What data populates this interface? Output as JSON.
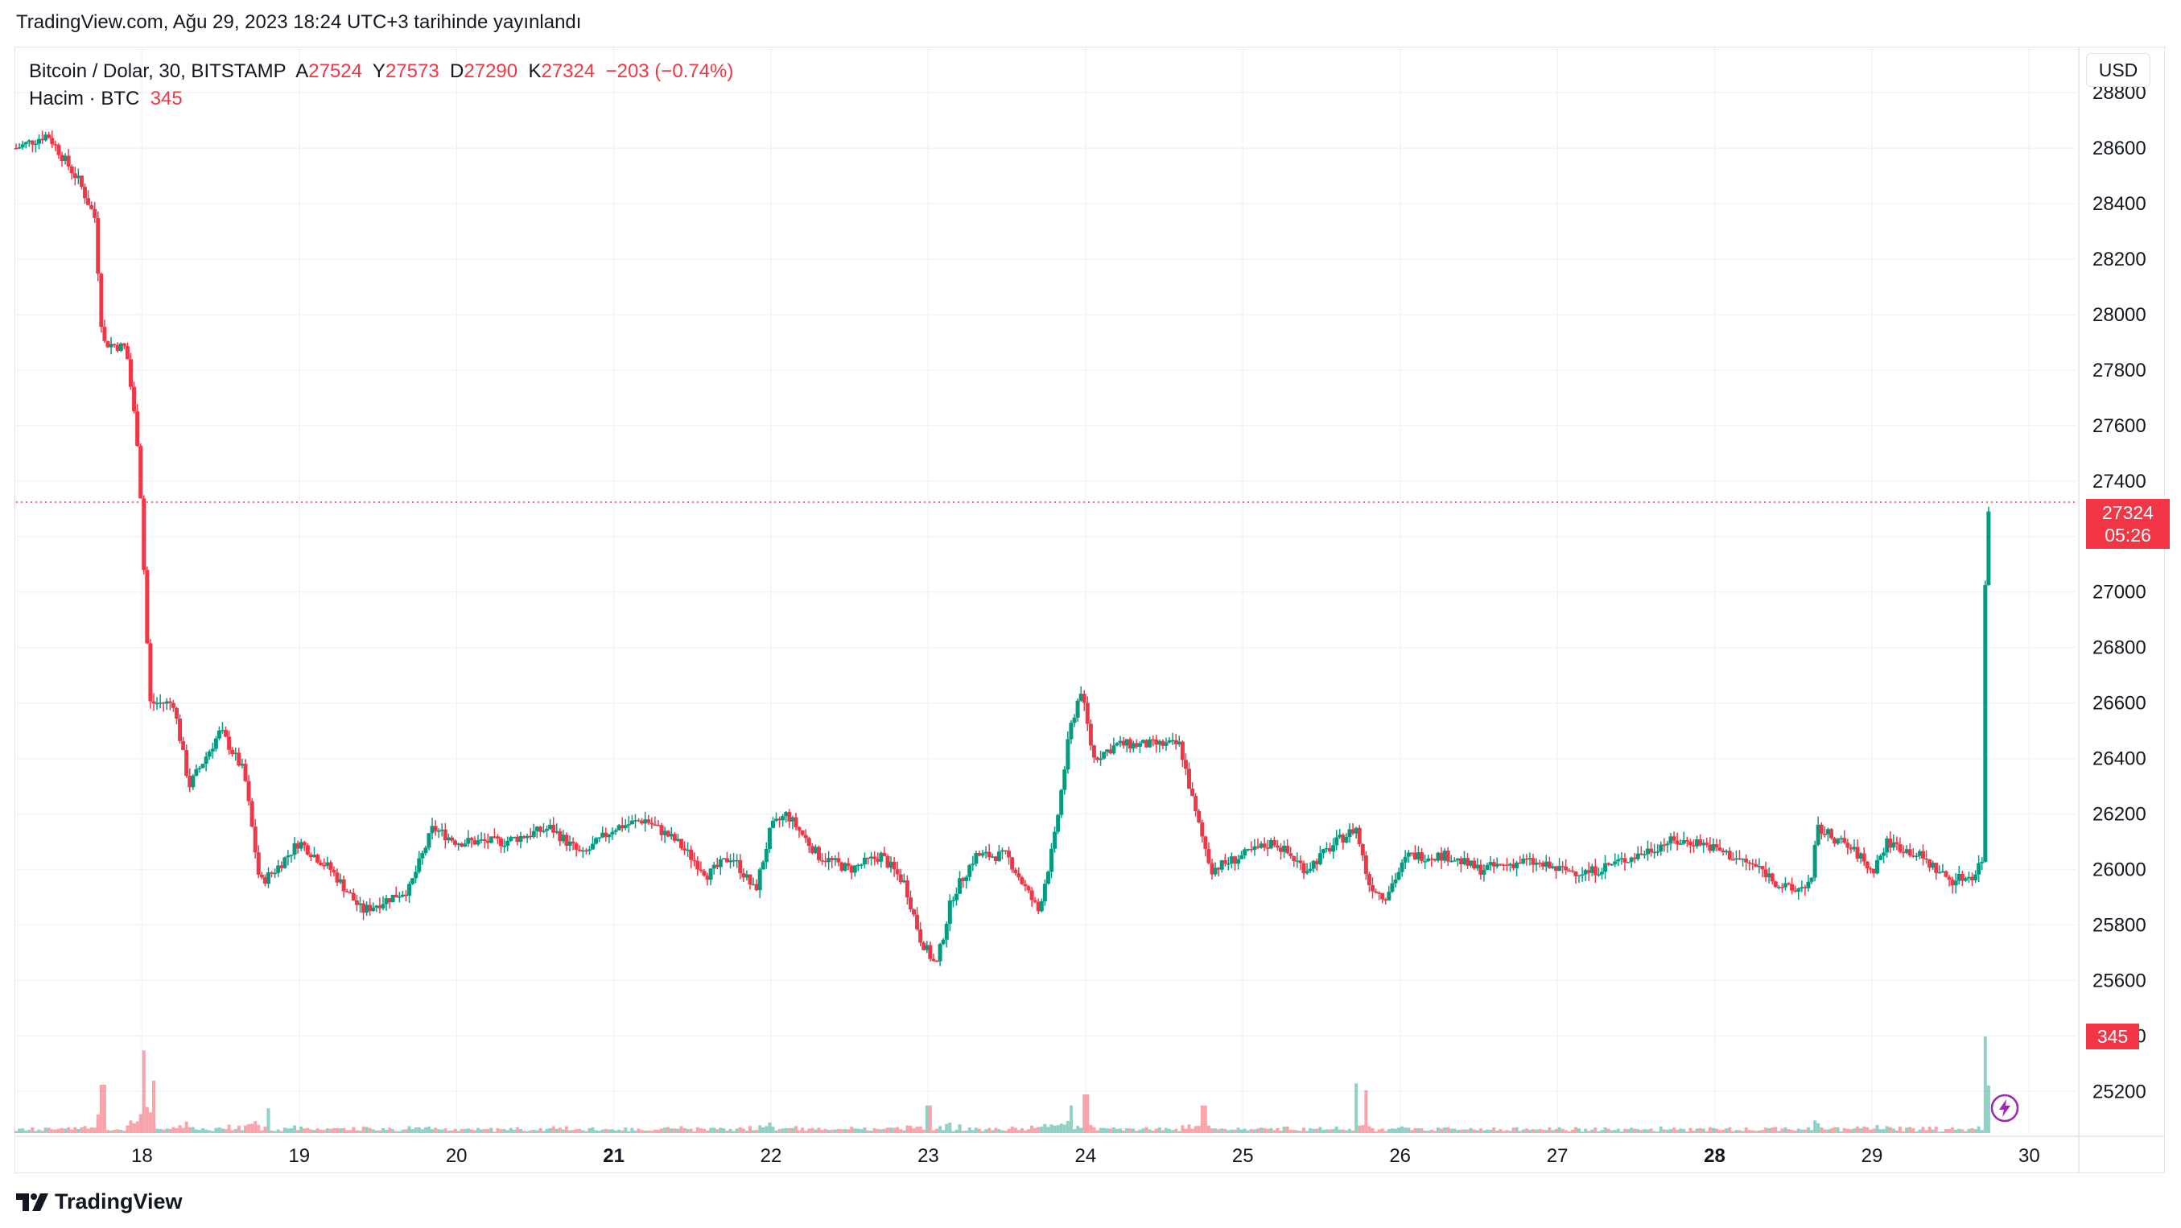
{
  "header": {
    "published": "TradingView.com, Ağu 29, 2023 18:24 UTC+3 tarihinde yayınlandı"
  },
  "legend": {
    "symbol": "Bitcoin / Dolar, 30, BITSTAMP",
    "open_label": "A",
    "open": "27524",
    "high_label": "Y",
    "high": "27573",
    "low_label": "D",
    "low": "27290",
    "close_label": "K",
    "close": "27324",
    "change": "−203 (−0.74%)",
    "volume_label": "Hacim · BTC",
    "volume": "345"
  },
  "currency": "USD",
  "price_badge": {
    "price": "27324",
    "countdown": "05:26"
  },
  "volume_badge": "345",
  "brand": "TradingView",
  "colors": {
    "up": "#089981",
    "down": "#f23645",
    "grid": "#f0f3fa",
    "text": "#131722",
    "axis_border": "#e0e3eb"
  },
  "icons": {
    "brand_logo": "tradingview-logo-icon",
    "bolt": "lightning-bolt-icon"
  },
  "chart_data": {
    "type": "candlestick",
    "interval_minutes": 30,
    "ylim": [
      25050,
      28960
    ],
    "y_ticks": [
      28800,
      28600,
      28400,
      28200,
      28000,
      27800,
      27600,
      27400,
      27200,
      27000,
      26800,
      26600,
      26400,
      26200,
      26000,
      25800,
      25600,
      25400,
      25200
    ],
    "x_range_days": [
      17.2,
      30.3
    ],
    "x_ticks": [
      {
        "day": 18,
        "label": "18",
        "bold": false
      },
      {
        "day": 19,
        "label": "19",
        "bold": false
      },
      {
        "day": 20,
        "label": "20",
        "bold": false
      },
      {
        "day": 21,
        "label": "21",
        "bold": true
      },
      {
        "day": 22,
        "label": "22",
        "bold": false
      },
      {
        "day": 23,
        "label": "23",
        "bold": false
      },
      {
        "day": 24,
        "label": "24",
        "bold": false
      },
      {
        "day": 25,
        "label": "25",
        "bold": false
      },
      {
        "day": 26,
        "label": "26",
        "bold": false
      },
      {
        "day": 27,
        "label": "27",
        "bold": false
      },
      {
        "day": 28,
        "label": "28",
        "bold": true
      },
      {
        "day": 29,
        "label": "29",
        "bold": false
      },
      {
        "day": 30,
        "label": "30",
        "bold": false
      }
    ],
    "last_price": 27324,
    "price_path": [
      [
        17.2,
        28600
      ],
      [
        17.4,
        28650
      ],
      [
        17.6,
        28480
      ],
      [
        17.7,
        28350
      ],
      [
        17.75,
        27900
      ],
      [
        17.9,
        27880
      ],
      [
        17.98,
        27500
      ],
      [
        18.05,
        26600
      ],
      [
        18.2,
        26600
      ],
      [
        18.3,
        26300
      ],
      [
        18.5,
        26500
      ],
      [
        18.65,
        26350
      ],
      [
        18.75,
        25950
      ],
      [
        18.85,
        26000
      ],
      [
        19.0,
        26100
      ],
      [
        19.2,
        26000
      ],
      [
        19.4,
        25850
      ],
      [
        19.7,
        25930
      ],
      [
        19.85,
        26150
      ],
      [
        20.0,
        26100
      ],
      [
        20.3,
        26100
      ],
      [
        20.6,
        26150
      ],
      [
        20.8,
        26050
      ],
      [
        21.0,
        26150
      ],
      [
        21.2,
        26180
      ],
      [
        21.4,
        26100
      ],
      [
        21.6,
        25980
      ],
      [
        21.75,
        26050
      ],
      [
        21.9,
        25920
      ],
      [
        22.0,
        26150
      ],
      [
        22.1,
        26200
      ],
      [
        22.3,
        26050
      ],
      [
        22.5,
        26000
      ],
      [
        22.7,
        26050
      ],
      [
        22.85,
        25950
      ],
      [
        22.95,
        25750
      ],
      [
        23.05,
        25650
      ],
      [
        23.15,
        25900
      ],
      [
        23.3,
        26050
      ],
      [
        23.5,
        26050
      ],
      [
        23.7,
        25850
      ],
      [
        23.8,
        26100
      ],
      [
        23.9,
        26500
      ],
      [
        23.97,
        26650
      ],
      [
        24.05,
        26400
      ],
      [
        24.2,
        26450
      ],
      [
        24.4,
        26450
      ],
      [
        24.6,
        26450
      ],
      [
        24.7,
        26200
      ],
      [
        24.8,
        26000
      ],
      [
        25.0,
        26050
      ],
      [
        25.2,
        26100
      ],
      [
        25.4,
        26000
      ],
      [
        25.6,
        26100
      ],
      [
        25.72,
        26150
      ],
      [
        25.8,
        25950
      ],
      [
        25.9,
        25900
      ],
      [
        26.05,
        26050
      ],
      [
        26.3,
        26050
      ],
      [
        26.5,
        26000
      ],
      [
        26.8,
        26030
      ],
      [
        27.0,
        26000
      ],
      [
        27.2,
        25990
      ],
      [
        27.5,
        26050
      ],
      [
        27.7,
        26100
      ],
      [
        27.9,
        26100
      ],
      [
        28.1,
        26050
      ],
      [
        28.3,
        26000
      ],
      [
        28.4,
        25950
      ],
      [
        28.5,
        25920
      ],
      [
        28.62,
        25960
      ],
      [
        28.65,
        26150
      ],
      [
        28.8,
        26100
      ],
      [
        28.92,
        26050
      ],
      [
        29.0,
        25990
      ],
      [
        29.1,
        26100
      ],
      [
        29.3,
        26050
      ],
      [
        29.5,
        25960
      ],
      [
        29.65,
        25980
      ],
      [
        29.7,
        26040
      ],
      [
        29.72,
        27000
      ],
      [
        29.73,
        27200
      ],
      [
        29.745,
        27324
      ]
    ],
    "volume_spikes": [
      {
        "day": 17.75,
        "value": 350
      },
      {
        "day": 18.02,
        "value": 600
      },
      {
        "day": 18.07,
        "value": 380
      },
      {
        "day": 18.8,
        "value": 180
      },
      {
        "day": 23.0,
        "value": 200
      },
      {
        "day": 23.9,
        "value": 200
      },
      {
        "day": 24.0,
        "value": 280
      },
      {
        "day": 24.75,
        "value": 200
      },
      {
        "day": 25.72,
        "value": 360
      },
      {
        "day": 25.78,
        "value": 310
      },
      {
        "day": 29.72,
        "value": 700
      },
      {
        "day": 29.745,
        "value": 345
      }
    ],
    "volume_ylim": [
      0,
      700
    ]
  }
}
